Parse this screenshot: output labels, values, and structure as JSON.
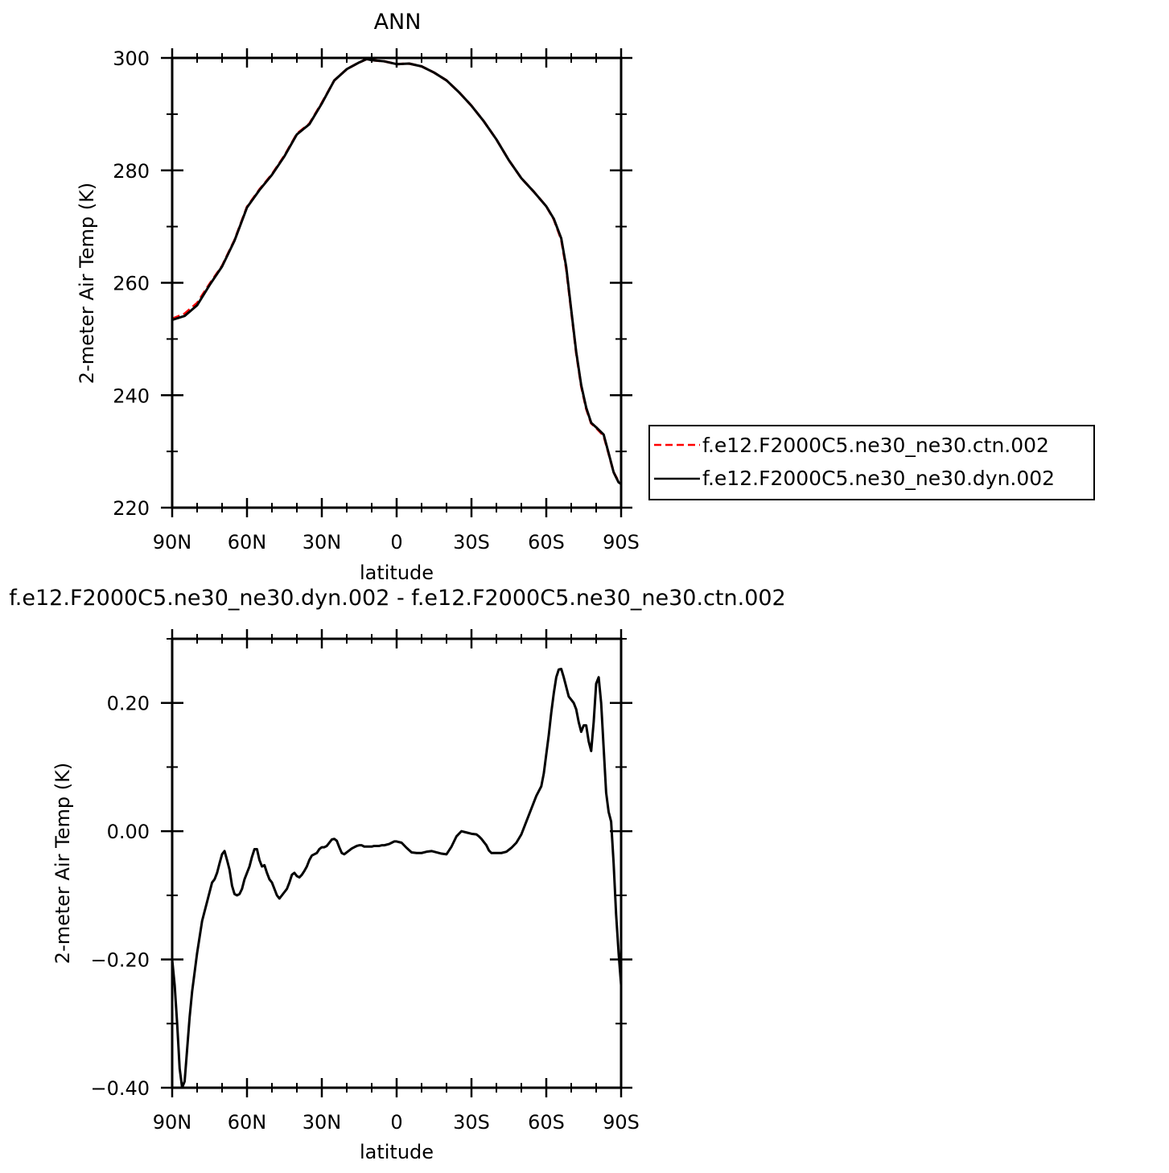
{
  "chart_data": [
    {
      "type": "line",
      "title": "ANN",
      "xlabel": "latitude",
      "ylabel": "2-meter Air Temp (K)",
      "xlim": [
        90,
        -90
      ],
      "ylim": [
        220,
        300
      ],
      "x_ticks": [
        {
          "value": 90,
          "label": "90N"
        },
        {
          "value": 60,
          "label": "60N"
        },
        {
          "value": 30,
          "label": "30N"
        },
        {
          "value": 0,
          "label": "0"
        },
        {
          "value": -30,
          "label": "30S"
        },
        {
          "value": -60,
          "label": "60S"
        },
        {
          "value": -90,
          "label": "90S"
        }
      ],
      "y_ticks": [
        {
          "value": 220,
          "label": "220"
        },
        {
          "value": 240,
          "label": "240"
        },
        {
          "value": 260,
          "label": "260"
        },
        {
          "value": 280,
          "label": "280"
        },
        {
          "value": 300,
          "label": "300"
        }
      ],
      "legend_position": "right",
      "series": [
        {
          "name": "f.e12.F2000C5.ne30_ne30.ctn.002",
          "color": "#ff0000",
          "style": "dashed",
          "x": [
            90,
            85,
            80,
            75,
            70,
            65,
            60,
            55,
            50,
            45,
            40,
            35,
            30,
            25,
            20,
            15,
            12,
            10,
            5,
            0,
            -5,
            -10,
            -15,
            -20,
            -25,
            -30,
            -35,
            -40,
            -45,
            -50,
            -55,
            -60,
            -63,
            -66,
            -68,
            -70,
            -72,
            -74,
            -76,
            -78,
            -80,
            -83,
            -85,
            -87,
            -89,
            -90
          ],
          "y": [
            253.6,
            254.5,
            256.4,
            259.8,
            263.0,
            267.6,
            273.5,
            276.6,
            279.3,
            282.6,
            286.5,
            288.3,
            292.0,
            296.0,
            298.0,
            299.2,
            299.8,
            299.6,
            299.4,
            298.9,
            299.0,
            298.5,
            297.4,
            296.0,
            293.9,
            291.5,
            288.7,
            285.5,
            281.8,
            278.6,
            276.2,
            273.6,
            271.3,
            267.7,
            262.5,
            255.0,
            247.5,
            241.6,
            237.6,
            235.0,
            234.2,
            232.8,
            229.6,
            226.3,
            224.6,
            224.4
          ]
        },
        {
          "name": "f.e12.F2000C5.ne30_ne30.dyn.002",
          "color": "#000000",
          "style": "solid",
          "x": [
            90,
            85,
            80,
            75,
            70,
            65,
            60,
            55,
            50,
            45,
            40,
            35,
            30,
            25,
            20,
            15,
            12,
            10,
            5,
            0,
            -5,
            -10,
            -15,
            -20,
            -25,
            -30,
            -35,
            -40,
            -45,
            -50,
            -55,
            -60,
            -63,
            -66,
            -68,
            -70,
            -72,
            -74,
            -76,
            -78,
            -80,
            -83,
            -85,
            -87,
            -89,
            -90
          ],
          "y": [
            253.4,
            254.1,
            256.0,
            259.6,
            262.9,
            267.5,
            273.4,
            276.5,
            279.2,
            282.5,
            286.4,
            288.2,
            291.9,
            296.0,
            298.0,
            299.2,
            299.8,
            299.6,
            299.4,
            298.9,
            299.0,
            298.5,
            297.4,
            296.0,
            293.9,
            291.5,
            288.7,
            285.5,
            281.8,
            278.6,
            276.2,
            273.6,
            271.4,
            267.9,
            262.8,
            255.2,
            247.7,
            241.8,
            237.8,
            235.1,
            234.3,
            233.0,
            229.7,
            226.3,
            224.5,
            224.2
          ]
        }
      ]
    },
    {
      "type": "line",
      "title": "f.e12.F2000C5.ne30_ne30.dyn.002 - f.e12.F2000C5.ne30_ne30.ctn.002",
      "xlabel": "latitude",
      "ylabel": "2-meter Air Temp (K)",
      "xlim": [
        90,
        -90
      ],
      "ylim": [
        -0.4,
        0.3
      ],
      "x_ticks": [
        {
          "value": 90,
          "label": "90N"
        },
        {
          "value": 60,
          "label": "60N"
        },
        {
          "value": 30,
          "label": "30N"
        },
        {
          "value": 0,
          "label": "0"
        },
        {
          "value": -30,
          "label": "30S"
        },
        {
          "value": -60,
          "label": "60S"
        },
        {
          "value": -90,
          "label": "90S"
        }
      ],
      "y_ticks": [
        {
          "value": -0.4,
          "label": "−0.40"
        },
        {
          "value": -0.2,
          "label": "−0.20"
        },
        {
          "value": 0.0,
          "label": "0.00"
        },
        {
          "value": 0.2,
          "label": "0.20"
        }
      ],
      "series": [
        {
          "color": "#000000",
          "style": "solid",
          "x": [
            90,
            89,
            88,
            87,
            86,
            85,
            84,
            83,
            82,
            80,
            78,
            76,
            74,
            73,
            72,
            71,
            70,
            69,
            68,
            67,
            66,
            65,
            64,
            63,
            62,
            61,
            60,
            59,
            58,
            57,
            56,
            55,
            54,
            53,
            52,
            51,
            50,
            49,
            48,
            47,
            46,
            45,
            44,
            43,
            42,
            41,
            40,
            39,
            38,
            37,
            36,
            35,
            34,
            33,
            32,
            31,
            30,
            29,
            28,
            27,
            26,
            25,
            24,
            23,
            22,
            21,
            20,
            19,
            18,
            17,
            16,
            15,
            14,
            13,
            12,
            11,
            10,
            9,
            8,
            7,
            6,
            5,
            4,
            3,
            2,
            1,
            0,
            -2,
            -4,
            -6,
            -8,
            -10,
            -12,
            -14,
            -16,
            -18,
            -20,
            -22,
            -24,
            -26,
            -28,
            -30,
            -32,
            -33,
            -34,
            -35,
            -36,
            -37,
            -38,
            -40,
            -42,
            -44,
            -46,
            -48,
            -50,
            -52,
            -54,
            -56,
            -58,
            -59,
            -60,
            -61,
            -62,
            -63,
            -64,
            -65,
            -66,
            -67,
            -68,
            -69,
            -70,
            -71,
            -72,
            -73,
            -74,
            -75,
            -76,
            -77,
            -78,
            -79,
            -80,
            -81,
            -82,
            -83,
            -84,
            -85,
            -86,
            -87,
            -88,
            -89,
            -90
          ],
          "y": [
            -0.2,
            -0.24,
            -0.3,
            -0.37,
            -0.4,
            -0.39,
            -0.34,
            -0.29,
            -0.25,
            -0.19,
            -0.14,
            -0.11,
            -0.08,
            -0.075,
            -0.065,
            -0.05,
            -0.036,
            -0.031,
            -0.045,
            -0.06,
            -0.085,
            -0.098,
            -0.1,
            -0.098,
            -0.09,
            -0.075,
            -0.065,
            -0.055,
            -0.04,
            -0.028,
            -0.028,
            -0.045,
            -0.055,
            -0.053,
            -0.065,
            -0.075,
            -0.08,
            -0.09,
            -0.1,
            -0.105,
            -0.1,
            -0.095,
            -0.09,
            -0.08,
            -0.068,
            -0.065,
            -0.07,
            -0.072,
            -0.068,
            -0.062,
            -0.055,
            -0.045,
            -0.038,
            -0.036,
            -0.034,
            -0.028,
            -0.025,
            -0.025,
            -0.023,
            -0.018,
            -0.013,
            -0.012,
            -0.015,
            -0.025,
            -0.034,
            -0.036,
            -0.033,
            -0.03,
            -0.027,
            -0.025,
            -0.023,
            -0.022,
            -0.022,
            -0.024,
            -0.024,
            -0.024,
            -0.024,
            -0.023,
            -0.023,
            -0.023,
            -0.022,
            -0.022,
            -0.021,
            -0.02,
            -0.018,
            -0.016,
            -0.016,
            -0.018,
            -0.026,
            -0.033,
            -0.034,
            -0.034,
            -0.032,
            -0.031,
            -0.033,
            -0.035,
            -0.036,
            -0.024,
            -0.008,
            0.0,
            -0.002,
            -0.004,
            -0.005,
            -0.008,
            -0.012,
            -0.017,
            -0.022,
            -0.03,
            -0.034,
            -0.034,
            -0.034,
            -0.032,
            -0.026,
            -0.018,
            -0.005,
            0.015,
            0.035,
            0.055,
            0.07,
            0.09,
            0.12,
            0.15,
            0.185,
            0.215,
            0.24,
            0.252,
            0.253,
            0.24,
            0.225,
            0.21,
            0.205,
            0.2,
            0.19,
            0.17,
            0.155,
            0.165,
            0.165,
            0.14,
            0.125,
            0.17,
            0.23,
            0.24,
            0.2,
            0.13,
            0.06,
            0.03,
            0.015,
            -0.05,
            -0.13,
            -0.19,
            -0.24
          ]
        }
      ]
    }
  ],
  "legend": {
    "entries": [
      {
        "label": "f.e12.F2000C5.ne30_ne30.ctn.002",
        "color": "#ff0000",
        "style": "dashed"
      },
      {
        "label": "f.e12.F2000C5.ne30_ne30.dyn.002",
        "color": "#000000",
        "style": "solid"
      }
    ]
  }
}
